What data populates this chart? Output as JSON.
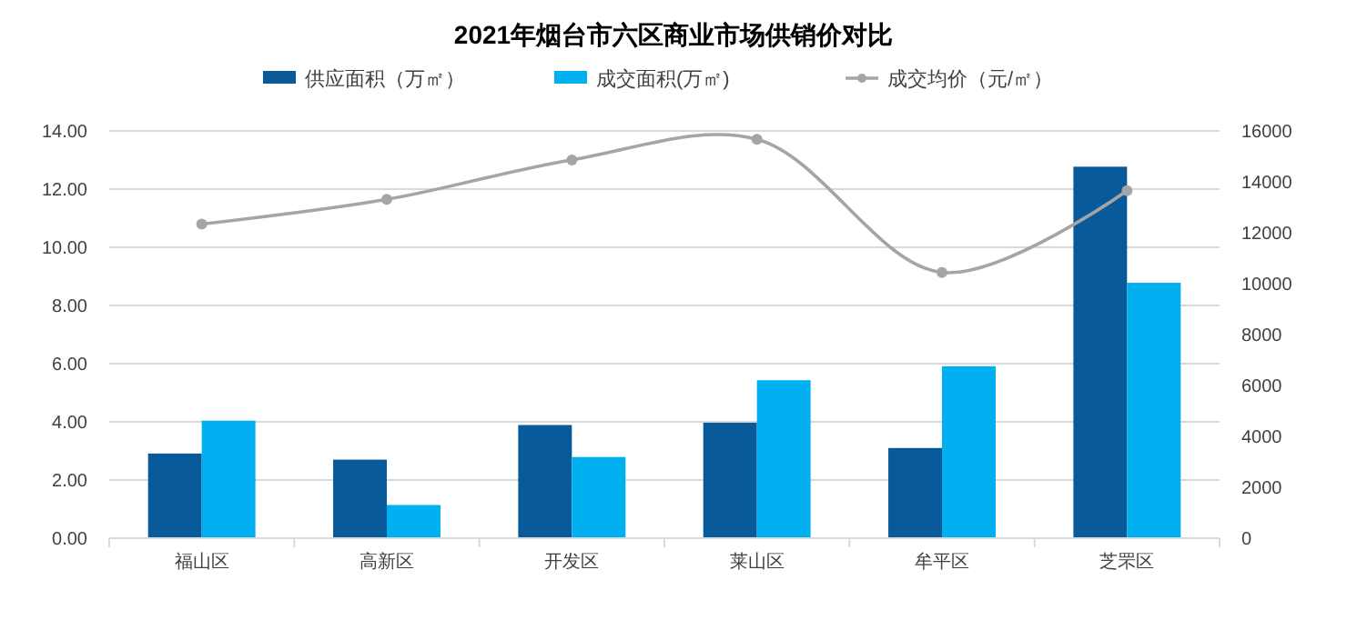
{
  "chart_data": {
    "type": "bar",
    "title": "2021年烟台市六区商业市场供销价对比",
    "categories": [
      "福山区",
      "高新区",
      "开发区",
      "莱山区",
      "牟平区",
      "芝罘区"
    ],
    "series": [
      {
        "name": "供应面积（万㎡）",
        "color": "#085a9a",
        "values": [
          2.91,
          2.7,
          3.89,
          3.97,
          3.1,
          12.77
        ]
      },
      {
        "name": "成交面积(万㎡)",
        "color": "#00b0f0",
        "values": [
          4.04,
          1.14,
          2.79,
          5.43,
          5.91,
          8.78
        ]
      },
      {
        "name": "成交均价（元/㎡）",
        "type": "line",
        "axis": "y2",
        "color": "#a5a5a5",
        "marker": "circle",
        "values": [
          12340,
          13310,
          14860,
          15670,
          10440,
          13650
        ]
      }
    ],
    "ylim": [
      0,
      14
    ],
    "yticks": [
      {
        "value": 0,
        "label": "0.00"
      },
      {
        "value": 2,
        "label": "2.00"
      },
      {
        "value": 4,
        "label": "4.00"
      },
      {
        "value": 6,
        "label": "6.00"
      },
      {
        "value": 8,
        "label": "8.00"
      },
      {
        "value": 10,
        "label": "10.00"
      },
      {
        "value": 12,
        "label": "12.00"
      },
      {
        "value": 14,
        "label": "14.00"
      }
    ],
    "y2lim": [
      0,
      16000
    ],
    "y2ticks": [
      0,
      2000,
      4000,
      6000,
      8000,
      10000,
      12000,
      14000,
      16000
    ],
    "grid": "y",
    "legend": "top"
  }
}
